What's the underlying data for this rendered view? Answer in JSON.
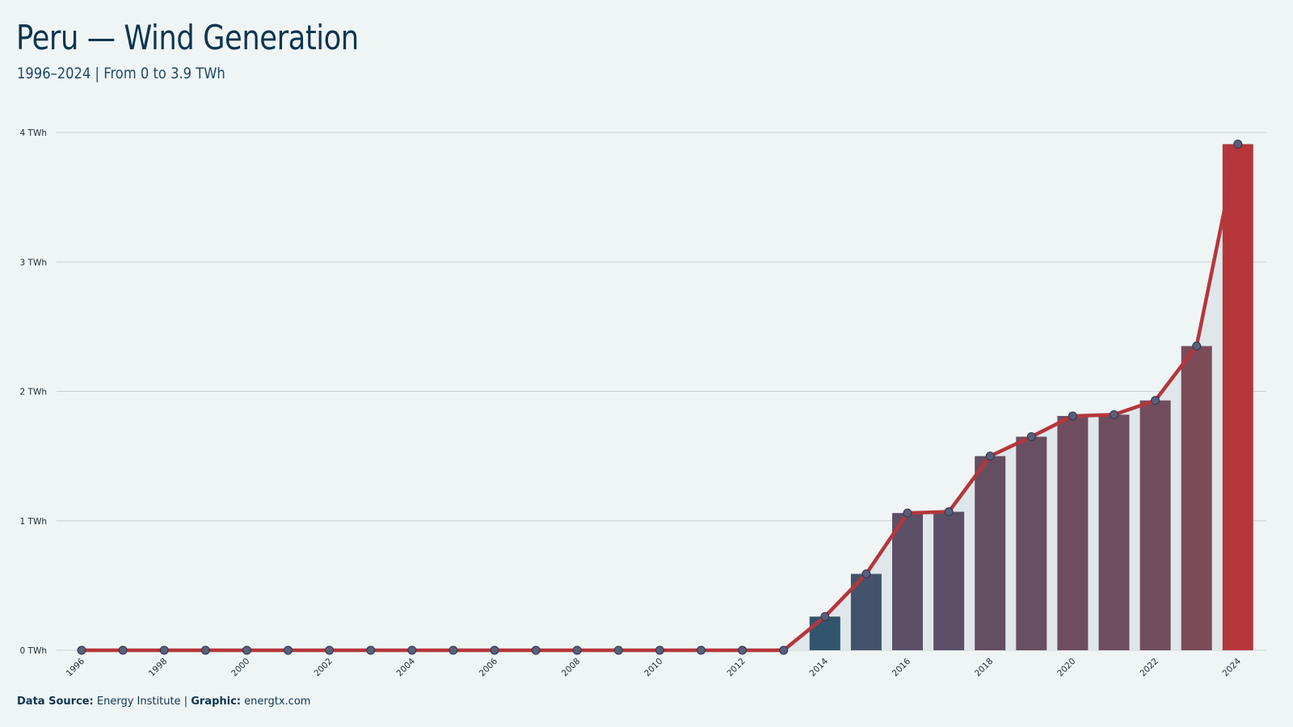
{
  "header": {
    "title": "Peru — Wind Generation",
    "subtitle": "1996–2024 | From 0 to 3.9 TWh"
  },
  "footer": {
    "source_label": "Data Source:",
    "source_value": "Energy Institute",
    "separator": "|",
    "graphic_label": "Graphic:",
    "graphic_value": "energtx.com"
  },
  "colors": {
    "background": "#eff5f5",
    "line": "#b5363b",
    "area": "#dfe7ea",
    "bar_low": "#24566f",
    "bar_mid": "#5b5068",
    "bar_high": "#b5363b",
    "marker": "#5a5f78",
    "gridline": "#c9cfd3"
  },
  "chart_data": {
    "type": "bar",
    "title": "Peru — Wind Generation",
    "subtitle": "1996–2024 | From 0 to 3.9 TWh",
    "xlabel": "",
    "ylabel": "",
    "unit": "TWh",
    "categories": [
      "1996",
      "1997",
      "1998",
      "1999",
      "2000",
      "2001",
      "2002",
      "2003",
      "2004",
      "2005",
      "2006",
      "2007",
      "2008",
      "2009",
      "2010",
      "2011",
      "2012",
      "2013",
      "2014",
      "2015",
      "2016",
      "2017",
      "2018",
      "2019",
      "2020",
      "2021",
      "2022",
      "2023",
      "2024"
    ],
    "values": [
      0,
      0,
      0,
      0,
      0,
      0,
      0,
      0,
      0,
      0,
      0,
      0,
      0,
      0,
      0,
      0,
      0,
      0,
      0.26,
      0.59,
      1.06,
      1.07,
      1.5,
      1.65,
      1.81,
      1.82,
      1.93,
      2.35,
      3.91
    ],
    "overlay": "line with markers and shaded area",
    "x_tick_labels": [
      "1996",
      "1998",
      "2000",
      "2002",
      "2004",
      "2006",
      "2008",
      "2010",
      "2012",
      "2014",
      "2016",
      "2018",
      "2020",
      "2022",
      "2024"
    ],
    "y_ticks": [
      0,
      1,
      2,
      3,
      4
    ],
    "y_tick_labels": [
      "0 TWh",
      "1 TWh",
      "2 TWh",
      "3 TWh",
      "4 TWh"
    ],
    "ylim": [
      0,
      4
    ],
    "grid": "horizontal",
    "legend": "none"
  }
}
